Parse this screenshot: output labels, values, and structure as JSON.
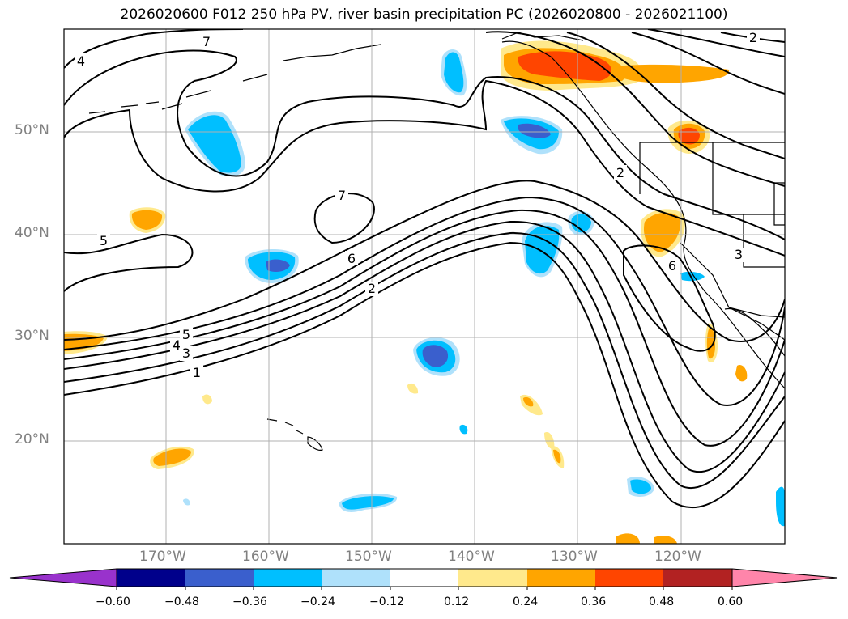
{
  "title": "2026020600 F012 250 hPa PV, river basin precipitation PC (2026020800 - 2026021100)",
  "lat_labels": [
    "50°N",
    "40°N",
    "30°N",
    "20°N"
  ],
  "lon_labels": [
    "170°W",
    "160°W",
    "150°W",
    "140°W",
    "130°W",
    "120°W"
  ],
  "contour_labels": [
    "7",
    "4",
    "2",
    "7",
    "5",
    "6",
    "2",
    "5",
    "4",
    "3",
    "1",
    "2",
    "6",
    "3"
  ],
  "colorbar": {
    "ticks": [
      "−0.60",
      "−0.48",
      "−0.36",
      "−0.24",
      "−0.12",
      "0.12",
      "0.24",
      "0.36",
      "0.48",
      "0.60"
    ],
    "colors": [
      "#9932cc",
      "#00008b",
      "#3a5fcd",
      "#00bfff",
      "#afe1fb",
      "#ffffff",
      "#ffe98c",
      "#ffa500",
      "#ff4500",
      "#b22222",
      "#ff85aa"
    ]
  }
}
